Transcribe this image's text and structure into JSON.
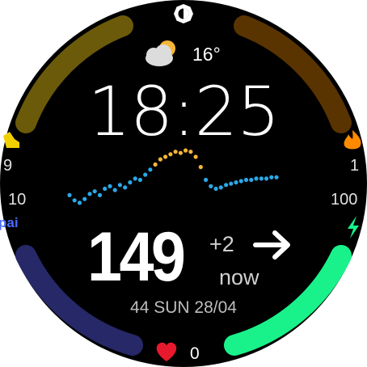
{
  "weather": {
    "icon": "partly-cloudy-icon",
    "temperature": "16°"
  },
  "clock": {
    "time": "18:25"
  },
  "glucose": {
    "value": "149",
    "delta": "+2",
    "trend_icon": "arrow-right-icon",
    "updated": "now"
  },
  "date_line": "44 SUN 28/04",
  "left_complications": {
    "top_icon": "shoe-icon",
    "top_value": "9",
    "mid_value": "10",
    "pai_label": "pai"
  },
  "right_complications": {
    "top_icon": "flame-icon",
    "top_value": "1",
    "mid_value": "100",
    "bottom_icon": "bolt-icon"
  },
  "heart": {
    "icon": "heart-icon",
    "count": "0"
  },
  "top_icon": "brightness-icon",
  "progress": {
    "top_left_arc": 1.0,
    "top_right_arc": 1.0,
    "bottom_left_arc": 1.0,
    "bottom_right_arc": 1.0
  },
  "colors": {
    "background": "#000000",
    "arc_top_left": "#6b5a0a",
    "arc_top_right": "#5a3400",
    "arc_bottom_left": "#262868",
    "arc_bottom_right": "#19f28a",
    "graph_normal": "#2ba8e8",
    "graph_high": "#f5b638",
    "heart": "#e8192c",
    "pai": "#4a6cff"
  },
  "chart_data": {
    "type": "scatter",
    "title": "",
    "xlabel": "",
    "ylabel": "",
    "series": [
      {
        "name": "glucose",
        "values": [
          128,
          124,
          122,
          125,
          129,
          131,
          128,
          133,
          135,
          132,
          136,
          134,
          138,
          141,
          140,
          144,
          148,
          152,
          156,
          158,
          160,
          162,
          161,
          163,
          162,
          158,
          150,
          140,
          135,
          133,
          134,
          136,
          137,
          138,
          139,
          140,
          140,
          141,
          141,
          141,
          142,
          142
        ]
      }
    ],
    "threshold_high": 150,
    "ylim": [
      115,
      170
    ]
  }
}
